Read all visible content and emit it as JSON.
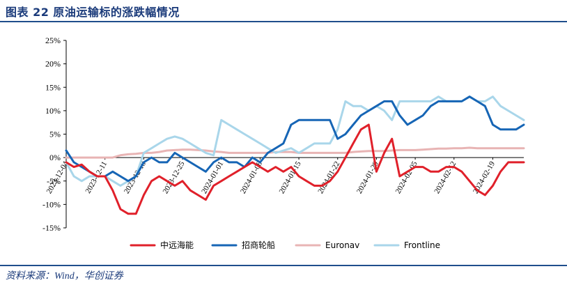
{
  "header": {
    "title": "图表 22  原油运输标的涨跌幅情况"
  },
  "footer": {
    "source": "资料来源：Wind，华创证券"
  },
  "colors": {
    "中远海能": "#e0202a",
    "招商轮船": "#1665b5",
    "Euronav": "#e8b4b4",
    "Frontline": "#a9d6ea"
  },
  "chart_data": {
    "type": "line",
    "ylim": [
      -15,
      25
    ],
    "yticks": [
      "25%",
      "20%",
      "15%",
      "10%",
      "5%",
      "0%",
      "-5%",
      "-10%",
      "-15%"
    ],
    "ytick_values": [
      25,
      20,
      15,
      10,
      5,
      0,
      -5,
      -10,
      -15
    ],
    "xlabels": [
      "2023-12-04",
      "2023-12-11",
      "2023-12-18",
      "2023-12-25",
      "2024-01-01",
      "2024-01-08",
      "2024-01-15",
      "2024-01-22",
      "2024-01-29",
      "2024-02-05",
      "2024-02-12",
      "2024-02-19"
    ],
    "x": [
      "2023-12-04",
      "2023-12-05",
      "2023-12-06",
      "2023-12-07",
      "2023-12-08",
      "2023-12-11",
      "2023-12-12",
      "2023-12-13",
      "2023-12-14",
      "2023-12-15",
      "2023-12-18",
      "2023-12-19",
      "2023-12-20",
      "2023-12-21",
      "2023-12-22",
      "2023-12-25",
      "2023-12-26",
      "2023-12-27",
      "2023-12-28",
      "2023-12-29",
      "2024-01-01",
      "2024-01-02",
      "2024-01-03",
      "2024-01-04",
      "2024-01-05",
      "2024-01-08",
      "2024-01-09",
      "2024-01-10",
      "2024-01-11",
      "2024-01-12",
      "2024-01-15",
      "2024-01-16",
      "2024-01-17",
      "2024-01-18",
      "2024-01-19",
      "2024-01-22",
      "2024-01-23",
      "2024-01-24",
      "2024-01-25",
      "2024-01-26",
      "2024-01-29",
      "2024-01-30",
      "2024-01-31",
      "2024-02-01",
      "2024-02-02",
      "2024-02-05",
      "2024-02-06",
      "2024-02-07",
      "2024-02-08",
      "2024-02-09",
      "2024-02-12",
      "2024-02-13",
      "2024-02-14",
      "2024-02-15",
      "2024-02-16",
      "2024-02-19",
      "2024-02-20",
      "2024-02-21",
      "2024-02-22",
      "2024-02-23"
    ],
    "series": [
      {
        "name": "中远海能",
        "values": [
          -1,
          -2,
          -1.5,
          -3,
          -4,
          -4,
          -7,
          -11,
          -12,
          -12,
          -8,
          -5,
          -4,
          -5,
          -6,
          -5,
          -7,
          -8,
          -9,
          -6,
          -5,
          -4,
          -3,
          -2,
          -1,
          -2,
          -3,
          -2,
          -3,
          -2,
          -4,
          -5,
          -6,
          -6,
          -5,
          -3,
          0,
          3,
          6,
          7,
          -3,
          1,
          4,
          -4,
          -3,
          -2,
          -2,
          -3,
          -3,
          -2,
          -2,
          -3,
          -5,
          -7,
          -8,
          -6,
          -3,
          -1,
          -1,
          -1
        ]
      },
      {
        "name": "招商轮船",
        "values": [
          1.5,
          -1,
          -2,
          -3,
          -4,
          -4,
          -3,
          -4,
          -5,
          -4,
          -1,
          0,
          -1,
          -1,
          1,
          0,
          -1,
          -2,
          -3,
          -1,
          0,
          -1,
          -1,
          -2,
          0,
          -1,
          1,
          2,
          3,
          7,
          8,
          8,
          8,
          8,
          8,
          4,
          5,
          7,
          9,
          10,
          11,
          12,
          12,
          9,
          7,
          8,
          9,
          11,
          12,
          12,
          12,
          12,
          13,
          12,
          11,
          7,
          6,
          6,
          6,
          7
        ]
      },
      {
        "name": "Euronav",
        "values": [
          0,
          0,
          0,
          0,
          0,
          0,
          0,
          0.5,
          0.7,
          0.8,
          1,
          1,
          1.2,
          1.5,
          1.6,
          1.7,
          1.7,
          1.6,
          1.5,
          1.3,
          1.2,
          1,
          1,
          1,
          1,
          1,
          1,
          1.2,
          1.2,
          1.2,
          1,
          1,
          1,
          1,
          1,
          1,
          1,
          1.2,
          1.3,
          1.4,
          1.4,
          1.4,
          1.5,
          1.6,
          1.6,
          1.6,
          1.7,
          1.8,
          1.9,
          1.9,
          2,
          2,
          2.1,
          2,
          2,
          2,
          2,
          2,
          2,
          2
        ]
      },
      {
        "name": "Frontline",
        "values": [
          -1,
          -4,
          -5,
          -4,
          -4,
          -4,
          -5,
          -6,
          -5,
          -4,
          1,
          2,
          3,
          4,
          4.5,
          4,
          3,
          2,
          1,
          0.5,
          8,
          7,
          6,
          5,
          4,
          3,
          2,
          1,
          1.5,
          2,
          1,
          2,
          3,
          3,
          3,
          6,
          12,
          11,
          11,
          10,
          11,
          10,
          8,
          12,
          12,
          12,
          12,
          12,
          13,
          12,
          12,
          12,
          13,
          12,
          12,
          13,
          11,
          10,
          9,
          8
        ]
      }
    ],
    "legend": "bottom",
    "grid": false
  }
}
